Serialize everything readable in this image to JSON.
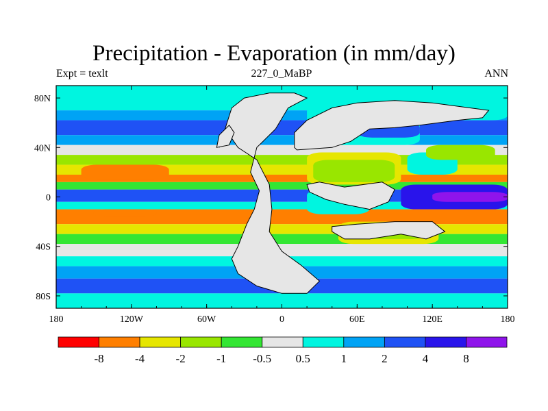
{
  "chart_data": {
    "type": "heatmap",
    "title": "Precipitation - Evaporation (in mm/day)",
    "left_label": "Expt = texlt",
    "center_label": "227_0_MaBP",
    "right_label": "ANN",
    "x_ticks": [
      "180",
      "120W",
      "60W",
      "0",
      "60E",
      "120E",
      "180"
    ],
    "y_ticks": [
      "80N",
      "40N",
      "0",
      "40S",
      "80S"
    ],
    "xlim": [
      -180,
      180
    ],
    "ylim": [
      -90,
      90
    ],
    "colorbar": {
      "levels": [
        "-8",
        "-4",
        "-2",
        "-1",
        "-0.5",
        "0.5",
        "1",
        "2",
        "4",
        "8"
      ],
      "colors": [
        "#ff0000",
        "#ff7f00",
        "#e6e600",
        "#99e600",
        "#33e633",
        "#e6e6e6",
        "#00f5e0",
        "#00a3f5",
        "#1f52f5",
        "#2914eb",
        "#8f14eb"
      ]
    },
    "zonal_bands": [
      {
        "lat_min": 70,
        "lat_max": 90,
        "class": 6
      },
      {
        "lat_min": 62,
        "lat_max": 70,
        "class": 7
      },
      {
        "lat_min": 50,
        "lat_max": 62,
        "class": 8
      },
      {
        "lat_min": 42,
        "lat_max": 50,
        "class": 7
      },
      {
        "lat_min": 34,
        "lat_max": 42,
        "class": 5
      },
      {
        "lat_min": 26,
        "lat_max": 34,
        "class": 3
      },
      {
        "lat_min": 18,
        "lat_max": 26,
        "class": 2
      },
      {
        "lat_min": 12,
        "lat_max": 18,
        "class": 1
      },
      {
        "lat_min": 6,
        "lat_max": 12,
        "class": 4
      },
      {
        "lat_min": -4,
        "lat_max": 6,
        "class": 8
      },
      {
        "lat_min": -10,
        "lat_max": -4,
        "class": 6
      },
      {
        "lat_min": -22,
        "lat_max": -10,
        "class": 1
      },
      {
        "lat_min": -30,
        "lat_max": -22,
        "class": 2
      },
      {
        "lat_min": -38,
        "lat_max": -30,
        "class": 4
      },
      {
        "lat_min": -48,
        "lat_max": -38,
        "class": 5
      },
      {
        "lat_min": -56,
        "lat_max": -48,
        "class": 6
      },
      {
        "lat_min": -66,
        "lat_max": -56,
        "class": 7
      },
      {
        "lat_min": -78,
        "lat_max": -66,
        "class": 8
      },
      {
        "lat_min": -90,
        "lat_max": -78,
        "class": 6
      }
    ],
    "regions": [
      {
        "lon_min": 95,
        "lon_max": 180,
        "lat_min": -10,
        "lat_max": 10,
        "class": 9
      },
      {
        "lon_min": 120,
        "lon_max": 180,
        "lat_min": -4,
        "lat_max": 4,
        "class": 10
      },
      {
        "lon_min": -160,
        "lon_max": -90,
        "lat_min": 14,
        "lat_max": 26,
        "class": 1
      },
      {
        "lon_min": -150,
        "lon_max": -100,
        "lat_min": -16,
        "lat_max": -10,
        "class": 1
      },
      {
        "lon_min": 20,
        "lon_max": 95,
        "lat_min": 10,
        "lat_max": 36,
        "class": 2
      },
      {
        "lon_min": 25,
        "lon_max": 90,
        "lat_min": 12,
        "lat_max": 30,
        "class": 3
      },
      {
        "lon_min": 45,
        "lon_max": 125,
        "lat_min": -38,
        "lat_max": -20,
        "class": 2
      },
      {
        "lon_min": 55,
        "lon_max": 115,
        "lat_min": -34,
        "lat_max": -22,
        "class": 3
      },
      {
        "lon_min": 20,
        "lon_max": 70,
        "lat_min": -14,
        "lat_max": 6,
        "class": 6
      },
      {
        "lon_min": 100,
        "lon_max": 140,
        "lat_min": 18,
        "lat_max": 36,
        "class": 6
      },
      {
        "lon_min": 115,
        "lon_max": 170,
        "lat_min": 30,
        "lat_max": 42,
        "class": 3
      },
      {
        "lon_min": 20,
        "lon_max": 110,
        "lat_min": 42,
        "lat_max": 74,
        "class": 6
      },
      {
        "lon_min": 60,
        "lon_max": 110,
        "lat_min": 48,
        "lat_max": 60,
        "class": 8
      },
      {
        "lon_min": 110,
        "lon_max": 180,
        "lat_min": 62,
        "lat_max": 74,
        "class": 6
      }
    ],
    "landmasses": [
      [
        [
          -50,
          40
        ],
        [
          -40,
          72
        ],
        [
          -30,
          80
        ],
        [
          -10,
          84
        ],
        [
          10,
          84
        ],
        [
          20,
          80
        ],
        [
          5,
          72
        ],
        [
          -5,
          55
        ],
        [
          -20,
          40
        ],
        [
          -25,
          20
        ],
        [
          -18,
          5
        ],
        [
          -22,
          -10
        ],
        [
          -28,
          -22
        ],
        [
          -35,
          -40
        ],
        [
          -40,
          -50
        ],
        [
          -35,
          -62
        ],
        [
          -20,
          -72
        ],
        [
          0,
          -78
        ],
        [
          20,
          -78
        ],
        [
          30,
          -68
        ],
        [
          15,
          -55
        ],
        [
          0,
          -44
        ],
        [
          -10,
          -28
        ],
        [
          -8,
          -10
        ],
        [
          -10,
          10
        ],
        [
          -20,
          30
        ],
        [
          -35,
          40
        ],
        [
          -45,
          55
        ],
        [
          -50,
          40
        ]
      ],
      [
        [
          -52,
          40
        ],
        [
          -50,
          50
        ],
        [
          -42,
          58
        ],
        [
          -38,
          52
        ],
        [
          -42,
          42
        ],
        [
          -52,
          40
        ]
      ],
      [
        [
          10,
          40
        ],
        [
          12,
          38
        ],
        [
          40,
          40
        ],
        [
          55,
          45
        ],
        [
          70,
          55
        ],
        [
          90,
          56
        ],
        [
          110,
          58
        ],
        [
          140,
          62
        ],
        [
          160,
          64
        ],
        [
          165,
          70
        ],
        [
          120,
          76
        ],
        [
          90,
          78
        ],
        [
          60,
          76
        ],
        [
          40,
          72
        ],
        [
          20,
          62
        ],
        [
          10,
          52
        ],
        [
          10,
          40
        ]
      ],
      [
        [
          20,
          10
        ],
        [
          30,
          12
        ],
        [
          50,
          8
        ],
        [
          80,
          12
        ],
        [
          90,
          6
        ],
        [
          85,
          -4
        ],
        [
          70,
          -10
        ],
        [
          50,
          -6
        ],
        [
          35,
          -2
        ],
        [
          22,
          4
        ],
        [
          20,
          10
        ]
      ],
      [
        [
          40,
          -24
        ],
        [
          60,
          -22
        ],
        [
          90,
          -20
        ],
        [
          120,
          -20
        ],
        [
          130,
          -28
        ],
        [
          115,
          -34
        ],
        [
          95,
          -30
        ],
        [
          70,
          -34
        ],
        [
          50,
          -34
        ],
        [
          40,
          -28
        ],
        [
          40,
          -24
        ]
      ]
    ]
  }
}
